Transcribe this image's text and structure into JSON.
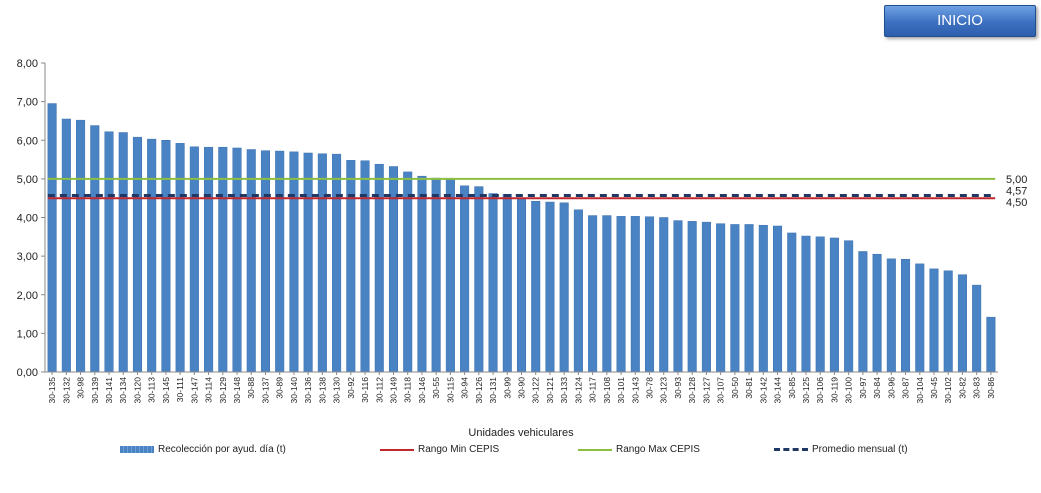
{
  "nav": {
    "inicio_label": "INICIO"
  },
  "chart_data": {
    "type": "bar",
    "title": "",
    "xlabel": "Unidades vehiculares",
    "ylabel": "",
    "ylim": [
      0,
      8
    ],
    "yticks": [
      "0,00",
      "1,00",
      "2,00",
      "3,00",
      "4,00",
      "5,00",
      "6,00",
      "7,00",
      "8,00"
    ],
    "grid": false,
    "legend_position": "bottom",
    "categories": [
      "30-135",
      "30-132",
      "30-98",
      "30-139",
      "30-141",
      "30-134",
      "30-120",
      "30-113",
      "30-145",
      "30-111",
      "30-147",
      "30-114",
      "30-129",
      "30-148",
      "30-88",
      "30-137",
      "30-89",
      "30-140",
      "30-136",
      "30-138",
      "30-130",
      "30-92",
      "30-116",
      "30-112",
      "30-149",
      "30-118",
      "30-146",
      "30-55",
      "30-115",
      "30-94",
      "30-126",
      "30-131",
      "30-99",
      "30-90",
      "30-122",
      "30-121",
      "30-133",
      "30-124",
      "30-117",
      "30-108",
      "30-101",
      "30-143",
      "30-78",
      "30-123",
      "30-93",
      "30-128",
      "30-127",
      "30-107",
      "30-50",
      "30-81",
      "30-142",
      "30-144",
      "30-85",
      "30-125",
      "30-106",
      "30-119",
      "30-100",
      "30-97",
      "30-84",
      "30-96",
      "30-87",
      "30-104",
      "30-45",
      "30-102",
      "30-82",
      "30-83",
      "30-86"
    ],
    "series": [
      {
        "name": "Recolección por ayud. día (t)",
        "type": "bar",
        "color": "#4a83c4",
        "values": [
          6.95,
          6.55,
          6.52,
          6.38,
          6.22,
          6.2,
          6.08,
          6.03,
          6.0,
          5.92,
          5.83,
          5.82,
          5.82,
          5.8,
          5.76,
          5.73,
          5.72,
          5.7,
          5.67,
          5.65,
          5.64,
          5.48,
          5.47,
          5.38,
          5.32,
          5.18,
          5.07,
          5.02,
          5.0,
          4.82,
          4.8,
          4.62,
          4.6,
          4.47,
          4.42,
          4.4,
          4.38,
          4.2,
          4.05,
          4.05,
          4.03,
          4.03,
          4.02,
          4.0,
          3.92,
          3.9,
          3.88,
          3.84,
          3.82,
          3.82,
          3.8,
          3.78,
          3.6,
          3.52,
          3.5,
          3.47,
          3.4,
          3.12,
          3.05,
          2.93,
          2.92,
          2.8,
          2.67,
          2.62,
          2.52,
          2.25,
          1.42
        ]
      },
      {
        "name": "Rango Min CEPIS",
        "type": "line",
        "color": "#c0282d",
        "value": 4.5,
        "label": "4,50"
      },
      {
        "name": "Rango Max CEPIS",
        "type": "line",
        "color": "#8cbf3f",
        "value": 5.0,
        "label": "5,00"
      },
      {
        "name": "Promedio mensual (t)",
        "type": "dashed-line",
        "color": "#1f3864",
        "value": 4.57,
        "label": "4,57"
      }
    ]
  }
}
